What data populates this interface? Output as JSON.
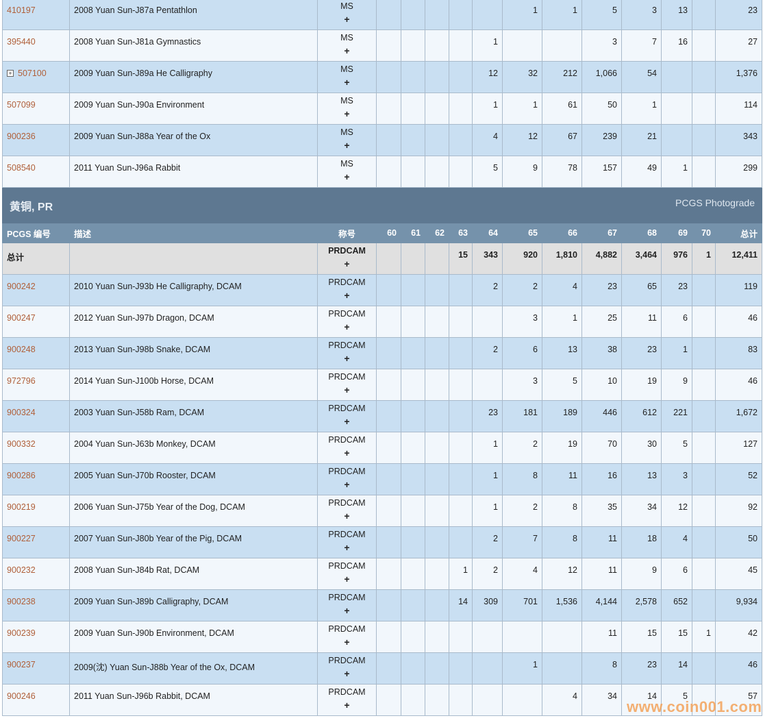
{
  "columns": {
    "pcgs": "PCGS 编号",
    "desc": "描述",
    "grade": "称号",
    "g60": "60",
    "g61": "61",
    "g62": "62",
    "g63": "63",
    "g64": "64",
    "g65": "65",
    "g66": "66",
    "g67": "67",
    "g68": "68",
    "g69": "69",
    "g70": "70",
    "total": "总计"
  },
  "ms_rows": [
    {
      "pcgs": "410197",
      "desc": "2008 Yuan Sun-J87a Pentathlon",
      "grade": "MS",
      "plus": "+",
      "g": [
        "",
        "",
        "",
        "",
        "",
        "1",
        "1",
        "5",
        "3",
        "13",
        ""
      ],
      "total": "23"
    },
    {
      "pcgs": "395440",
      "desc": "2008 Yuan Sun-J81a Gymnastics",
      "grade": "MS",
      "plus": "+",
      "g": [
        "",
        "",
        "",
        "",
        "1",
        "",
        "",
        "3",
        "7",
        "16",
        ""
      ],
      "total": "27"
    },
    {
      "pcgs": "507100",
      "desc": "2009 Yuan Sun-J89a He Calligraphy",
      "grade": "MS",
      "plus": "+",
      "expand": "+",
      "g": [
        "",
        "",
        "",
        "",
        "12",
        "32",
        "212",
        "1,066",
        "54",
        "",
        ""
      ],
      "total": "1,376"
    },
    {
      "pcgs": "507099",
      "desc": "2009 Yuan Sun-J90a Environment",
      "grade": "MS",
      "plus": "+",
      "g": [
        "",
        "",
        "",
        "",
        "1",
        "1",
        "61",
        "50",
        "1",
        "",
        ""
      ],
      "total": "114"
    },
    {
      "pcgs": "900236",
      "desc": "2009 Yuan Sun-J88a Year of the Ox",
      "grade": "MS",
      "plus": "+",
      "g": [
        "",
        "",
        "",
        "",
        "4",
        "12",
        "67",
        "239",
        "21",
        "",
        ""
      ],
      "total": "343"
    },
    {
      "pcgs": "508540",
      "desc": "2011 Yuan Sun-J96a Rabbit",
      "grade": "MS",
      "plus": "+",
      "g": [
        "",
        "",
        "",
        "",
        "5",
        "9",
        "78",
        "157",
        "49",
        "1",
        ""
      ],
      "total": "299"
    }
  ],
  "pr_section": {
    "title": "黄铜, PR",
    "right_label": "PCGS Photograde"
  },
  "pr_total": {
    "pcgs": "总计",
    "desc": "",
    "grade": "PRDCAM",
    "plus": "+",
    "g": [
      "",
      "",
      "",
      "15",
      "343",
      "920",
      "1,810",
      "4,882",
      "3,464",
      "976",
      "1"
    ],
    "total": "12,411"
  },
  "pr_rows": [
    {
      "pcgs": "900242",
      "desc": "2010 Yuan Sun-J93b He Calligraphy, DCAM",
      "grade": "PRDCAM",
      "plus": "+",
      "g": [
        "",
        "",
        "",
        "",
        "2",
        "2",
        "4",
        "23",
        "65",
        "23",
        ""
      ],
      "total": "119"
    },
    {
      "pcgs": "900247",
      "desc": "2012 Yuan Sun-J97b Dragon, DCAM",
      "grade": "PRDCAM",
      "plus": "+",
      "g": [
        "",
        "",
        "",
        "",
        "",
        "3",
        "1",
        "25",
        "11",
        "6",
        ""
      ],
      "total": "46"
    },
    {
      "pcgs": "900248",
      "desc": "2013 Yuan Sun-J98b Snake, DCAM",
      "grade": "PRDCAM",
      "plus": "+",
      "g": [
        "",
        "",
        "",
        "",
        "2",
        "6",
        "13",
        "38",
        "23",
        "1",
        ""
      ],
      "total": "83"
    },
    {
      "pcgs": "972796",
      "desc": "2014 Yuan Sun-J100b Horse, DCAM",
      "grade": "PRDCAM",
      "plus": "+",
      "g": [
        "",
        "",
        "",
        "",
        "",
        "3",
        "5",
        "10",
        "19",
        "9",
        ""
      ],
      "total": "46"
    },
    {
      "pcgs": "900324",
      "desc": "2003 Yuan Sun-J58b Ram, DCAM",
      "grade": "PRDCAM",
      "plus": "+",
      "g": [
        "",
        "",
        "",
        "",
        "23",
        "181",
        "189",
        "446",
        "612",
        "221",
        ""
      ],
      "total": "1,672"
    },
    {
      "pcgs": "900332",
      "desc": "2004 Yuan Sun-J63b Monkey, DCAM",
      "grade": "PRDCAM",
      "plus": "+",
      "g": [
        "",
        "",
        "",
        "",
        "1",
        "2",
        "19",
        "70",
        "30",
        "5",
        ""
      ],
      "total": "127"
    },
    {
      "pcgs": "900286",
      "desc": "2005 Yuan Sun-J70b Rooster, DCAM",
      "grade": "PRDCAM",
      "plus": "+",
      "g": [
        "",
        "",
        "",
        "",
        "1",
        "8",
        "11",
        "16",
        "13",
        "3",
        ""
      ],
      "total": "52"
    },
    {
      "pcgs": "900219",
      "desc": "2006 Yuan Sun-J75b Year of the Dog, DCAM",
      "grade": "PRDCAM",
      "plus": "+",
      "g": [
        "",
        "",
        "",
        "",
        "1",
        "2",
        "8",
        "35",
        "34",
        "12",
        ""
      ],
      "total": "92"
    },
    {
      "pcgs": "900227",
      "desc": "2007 Yuan Sun-J80b Year of the Pig, DCAM",
      "grade": "PRDCAM",
      "plus": "+",
      "g": [
        "",
        "",
        "",
        "",
        "2",
        "7",
        "8",
        "11",
        "18",
        "4",
        ""
      ],
      "total": "50"
    },
    {
      "pcgs": "900232",
      "desc": "2008 Yuan Sun-J84b Rat, DCAM",
      "grade": "PRDCAM",
      "plus": "+",
      "g": [
        "",
        "",
        "",
        "1",
        "2",
        "4",
        "12",
        "11",
        "9",
        "6",
        ""
      ],
      "total": "45"
    },
    {
      "pcgs": "900238",
      "desc": "2009 Yuan Sun-J89b Calligraphy, DCAM",
      "grade": "PRDCAM",
      "plus": "+",
      "g": [
        "",
        "",
        "",
        "14",
        "309",
        "701",
        "1,536",
        "4,144",
        "2,578",
        "652",
        ""
      ],
      "total": "9,934"
    },
    {
      "pcgs": "900239",
      "desc": "2009 Yuan Sun-J90b Environment, DCAM",
      "grade": "PRDCAM",
      "plus": "+",
      "g": [
        "",
        "",
        "",
        "",
        "",
        "",
        "",
        "11",
        "15",
        "15",
        "1"
      ],
      "total": "42"
    },
    {
      "pcgs": "900237",
      "desc": "2009(沈) Yuan Sun-J88b Year of the Ox, DCAM",
      "grade": "PRDCAM",
      "plus": "+",
      "g": [
        "",
        "",
        "",
        "",
        "",
        "1",
        "",
        "8",
        "23",
        "14",
        ""
      ],
      "total": "46"
    },
    {
      "pcgs": "900246",
      "desc": "2011 Yuan Sun-J96b Rabbit, DCAM",
      "grade": "PRDCAM",
      "plus": "+",
      "g": [
        "",
        "",
        "",
        "",
        "",
        "",
        "4",
        "34",
        "14",
        "5",
        ""
      ],
      "total": "57"
    }
  ],
  "watermark": "www.coin001.com",
  "colors": {
    "row_a": "#c9dff2",
    "row_b": "#f2f7fc",
    "section": "#5e7891",
    "header": "#7592ab",
    "total": "#e0e0e0",
    "link": "#b0603a"
  }
}
